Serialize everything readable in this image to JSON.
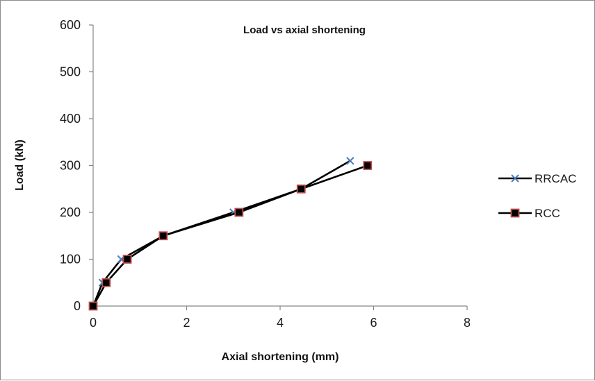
{
  "chart_data": {
    "type": "line",
    "title": "Load vs axial shortening",
    "xlabel": "Axial shortening (mm)",
    "ylabel": "Load (kN)",
    "xlim": [
      0,
      8
    ],
    "ylim": [
      0,
      600
    ],
    "xticks": [
      0,
      2,
      4,
      6,
      8
    ],
    "yticks": [
      0,
      100,
      200,
      300,
      400,
      500,
      600
    ],
    "grid": false,
    "legend_position": "right",
    "series": [
      {
        "name": "RRCAC",
        "marker": "x",
        "line_color": "#000000",
        "marker_color": "#4a7ebb",
        "points": [
          {
            "x": 0,
            "y": 0
          },
          {
            "x": 0.2,
            "y": 50
          },
          {
            "x": 0.6,
            "y": 100
          },
          {
            "x": 1.5,
            "y": 150
          },
          {
            "x": 3.0,
            "y": 200
          },
          {
            "x": 4.45,
            "y": 250
          },
          {
            "x": 5.5,
            "y": 310
          }
        ]
      },
      {
        "name": "RCC",
        "marker": "square",
        "line_color": "#000000",
        "marker_color": "#000000",
        "marker_edge_color": "#c0504d",
        "points": [
          {
            "x": 0,
            "y": 0
          },
          {
            "x": 0.28,
            "y": 50
          },
          {
            "x": 0.73,
            "y": 100
          },
          {
            "x": 1.5,
            "y": 150
          },
          {
            "x": 3.12,
            "y": 200
          },
          {
            "x": 4.45,
            "y": 250
          },
          {
            "x": 5.87,
            "y": 300
          }
        ]
      }
    ]
  }
}
